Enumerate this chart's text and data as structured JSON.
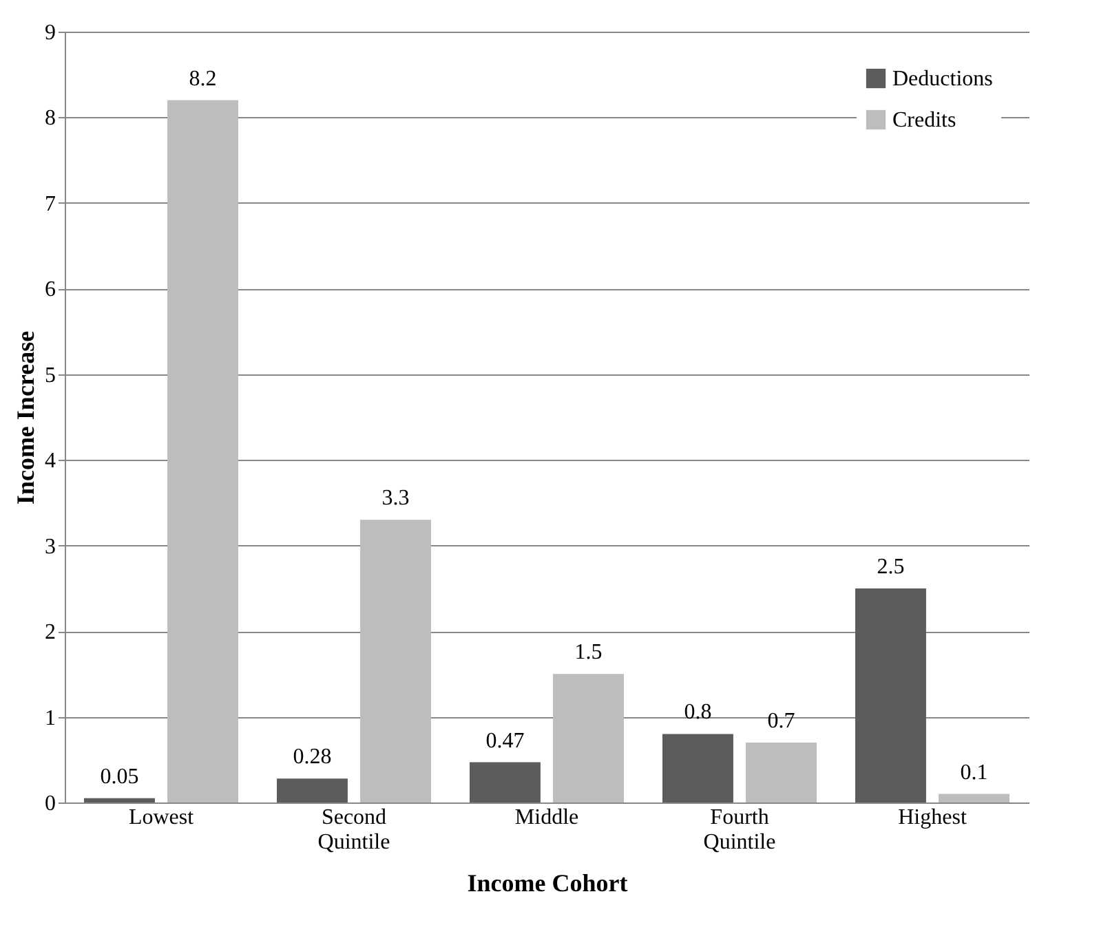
{
  "chart_data": {
    "type": "bar",
    "xlabel": "Income  Cohort",
    "ylabel": "Income Increase",
    "categories": [
      "Lowest",
      "Second Quintile",
      "Middle",
      "Fourth Quintile",
      "Highest"
    ],
    "series": [
      {
        "name": "Deductions",
        "color": "#5c5c5c",
        "values": [
          0.05,
          0.28,
          0.47,
          0.8,
          2.5
        ]
      },
      {
        "name": "Credits",
        "color": "#bdbdbd",
        "values": [
          8.2,
          3.3,
          1.5,
          0.7,
          0.1
        ]
      }
    ],
    "ylim": [
      0,
      9
    ],
    "yticks": [
      0,
      1,
      2,
      3,
      4,
      5,
      6,
      7,
      8,
      9
    ],
    "grid": "y",
    "legend": "top right",
    "data_labels": true
  }
}
